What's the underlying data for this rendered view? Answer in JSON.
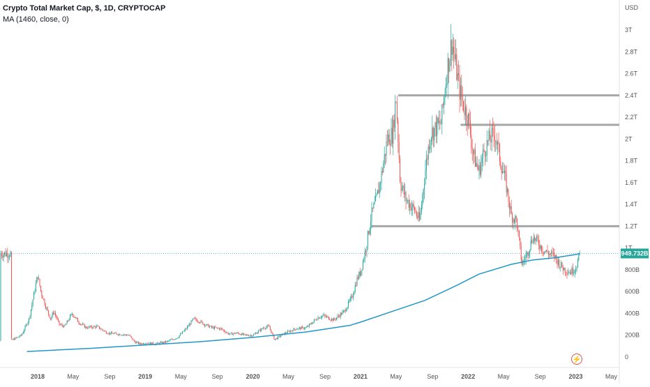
{
  "legend": {
    "title": "Crypto Total Market Cap, $, 1D, CRYPTOCAP",
    "indicator": "MA (1460, close, 0)"
  },
  "price_scale": {
    "currency": "USD",
    "ticks": [
      "3T",
      "2.8T",
      "2.6T",
      "2.4T",
      "2.2T",
      "2T",
      "1.8T",
      "1.6T",
      "1.4T",
      "1.2T",
      "1T",
      "800B",
      "600B",
      "400B",
      "200B",
      "0"
    ],
    "last_value_label": "949.732B"
  },
  "time_axis": {
    "ticks": [
      "2018",
      "May",
      "Sep",
      "2019",
      "May",
      "Sep",
      "2020",
      "May",
      "Sep",
      "2021",
      "May",
      "Sep",
      "2022",
      "May",
      "Sep",
      "2023",
      "May"
    ]
  },
  "icons": {
    "alert": "lightning-icon"
  },
  "colors": {
    "up": "#26a69a",
    "down": "#ef5350",
    "ma": "#2196c9",
    "level_lines": "#a6a6a6",
    "price_label_bg": "#26a69a"
  },
  "chart_data": {
    "type": "line",
    "title": "Crypto Total Market Cap, $, 1D, CRYPTOCAP",
    "ylabel": "USD",
    "ylim": [
      -0.05,
      3.2
    ],
    "y_unit": "trillion USD",
    "x_unit": "year (decimal)",
    "xlim": [
      2017.75,
      2023.38
    ],
    "price_series": [
      [
        2017.75,
        0.15
      ],
      [
        2017.85,
        0.2
      ],
      [
        2017.92,
        0.35
      ],
      [
        2017.96,
        0.55
      ],
      [
        2018.0,
        0.75
      ],
      [
        2018.03,
        0.6
      ],
      [
        2018.08,
        0.45
      ],
      [
        2018.12,
        0.35
      ],
      [
        2018.15,
        0.42
      ],
      [
        2018.2,
        0.3
      ],
      [
        2018.25,
        0.28
      ],
      [
        2018.32,
        0.4
      ],
      [
        2018.38,
        0.32
      ],
      [
        2018.45,
        0.27
      ],
      [
        2018.55,
        0.28
      ],
      [
        2018.65,
        0.22
      ],
      [
        2018.75,
        0.21
      ],
      [
        2018.85,
        0.2
      ],
      [
        2018.9,
        0.14
      ],
      [
        2018.95,
        0.12
      ],
      [
        2019.0,
        0.13
      ],
      [
        2019.1,
        0.12
      ],
      [
        2019.2,
        0.14
      ],
      [
        2019.3,
        0.18
      ],
      [
        2019.38,
        0.26
      ],
      [
        2019.45,
        0.35
      ],
      [
        2019.5,
        0.33
      ],
      [
        2019.55,
        0.3
      ],
      [
        2019.62,
        0.27
      ],
      [
        2019.7,
        0.26
      ],
      [
        2019.78,
        0.21
      ],
      [
        2019.85,
        0.22
      ],
      [
        2019.93,
        0.2
      ],
      [
        2020.0,
        0.2
      ],
      [
        2020.1,
        0.27
      ],
      [
        2020.15,
        0.28
      ],
      [
        2020.2,
        0.16
      ],
      [
        2020.3,
        0.22
      ],
      [
        2020.4,
        0.26
      ],
      [
        2020.5,
        0.27
      ],
      [
        2020.6,
        0.36
      ],
      [
        2020.65,
        0.38
      ],
      [
        2020.75,
        0.34
      ],
      [
        2020.85,
        0.42
      ],
      [
        2020.92,
        0.55
      ],
      [
        2020.97,
        0.72
      ],
      [
        2021.0,
        0.78
      ],
      [
        2021.05,
        1.0
      ],
      [
        2021.1,
        1.3
      ],
      [
        2021.15,
        1.45
      ],
      [
        2021.2,
        1.7
      ],
      [
        2021.25,
        2.0
      ],
      [
        2021.3,
        2.05
      ],
      [
        2021.33,
        2.4
      ],
      [
        2021.37,
        1.6
      ],
      [
        2021.42,
        1.45
      ],
      [
        2021.5,
        1.35
      ],
      [
        2021.55,
        1.25
      ],
      [
        2021.6,
        1.7
      ],
      [
        2021.65,
        2.05
      ],
      [
        2021.7,
        2.1
      ],
      [
        2021.75,
        2.15
      ],
      [
        2021.8,
        2.6
      ],
      [
        2021.85,
        2.9
      ],
      [
        2021.88,
        2.7
      ],
      [
        2021.92,
        2.45
      ],
      [
        2021.96,
        2.3
      ],
      [
        2022.0,
        2.2
      ],
      [
        2022.05,
        1.85
      ],
      [
        2022.1,
        1.7
      ],
      [
        2022.15,
        1.9
      ],
      [
        2022.2,
        2.0
      ],
      [
        2022.25,
        2.05
      ],
      [
        2022.3,
        1.8
      ],
      [
        2022.35,
        1.6
      ],
      [
        2022.4,
        1.3
      ],
      [
        2022.45,
        1.25
      ],
      [
        2022.5,
        0.85
      ],
      [
        2022.55,
        0.95
      ],
      [
        2022.6,
        1.1
      ],
      [
        2022.65,
        1.05
      ],
      [
        2022.7,
        0.98
      ],
      [
        2022.75,
        0.95
      ],
      [
        2022.8,
        0.93
      ],
      [
        2022.85,
        0.85
      ],
      [
        2022.9,
        0.8
      ],
      [
        2022.95,
        0.78
      ],
      [
        2023.0,
        0.82
      ],
      [
        2023.04,
        0.95
      ]
    ],
    "ma_series": [
      [
        2017.9,
        0.05
      ],
      [
        2018.5,
        0.08
      ],
      [
        2019.0,
        0.11
      ],
      [
        2019.5,
        0.14
      ],
      [
        2020.0,
        0.18
      ],
      [
        2020.5,
        0.23
      ],
      [
        2020.9,
        0.29
      ],
      [
        2021.0,
        0.32
      ],
      [
        2021.3,
        0.42
      ],
      [
        2021.6,
        0.52
      ],
      [
        2021.9,
        0.66
      ],
      [
        2022.1,
        0.76
      ],
      [
        2022.4,
        0.85
      ],
      [
        2022.6,
        0.89
      ],
      [
        2022.8,
        0.91
      ],
      [
        2023.0,
        0.94
      ],
      [
        2023.04,
        0.95
      ]
    ],
    "horizontal_levels": [
      {
        "y": 2.4,
        "x_start": 2021.35
      },
      {
        "y": 2.13,
        "x_start": 2021.93
      },
      {
        "y": 1.2,
        "x_start": 2021.1
      }
    ]
  }
}
